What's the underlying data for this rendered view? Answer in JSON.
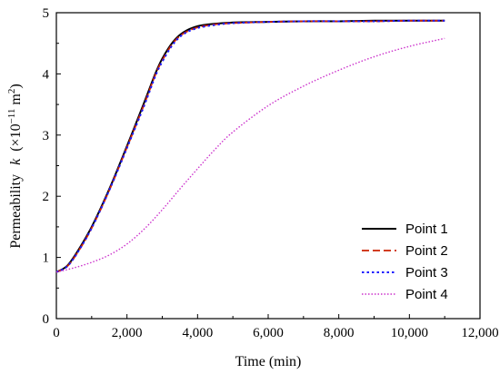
{
  "chart_data": {
    "type": "line",
    "xlabel": "Time (min)",
    "ylabel": {
      "prefix": "Permeability",
      "symbol": "k",
      "open": "(×10",
      "exp": "−11",
      "unit": " m",
      "unit_exp": "2",
      "close": ")"
    },
    "xlim": [
      0,
      12000
    ],
    "ylim": [
      0,
      5
    ],
    "xticks": [
      0,
      2000,
      4000,
      6000,
      8000,
      10000,
      12000
    ],
    "xtick_labels": [
      "0",
      "2,000",
      "4,000",
      "6,000",
      "8,000",
      "10,000",
      "12,000"
    ],
    "yticks": [
      0,
      1,
      2,
      3,
      4,
      5
    ],
    "ytick_labels": [
      "0",
      "1",
      "2",
      "3",
      "4",
      "5"
    ],
    "grid": false,
    "legend_position": "bottom-right",
    "series": [
      {
        "name": "Point 1",
        "color": "#000000",
        "dash": "solid",
        "x": [
          0,
          300,
          600,
          1000,
          1500,
          2000,
          2500,
          2800,
          3000,
          3300,
          3600,
          4000,
          4500,
          5000,
          6000,
          7000,
          8000,
          9000,
          10000,
          11000
        ],
        "y": [
          0.76,
          0.86,
          1.1,
          1.5,
          2.12,
          2.82,
          3.55,
          4.0,
          4.25,
          4.52,
          4.68,
          4.78,
          4.82,
          4.84,
          4.85,
          4.86,
          4.86,
          4.87,
          4.87,
          4.87
        ]
      },
      {
        "name": "Point 2",
        "color": "#cc2200",
        "dash": "dashed",
        "x": [
          0,
          300,
          600,
          1000,
          1500,
          2000,
          2500,
          2800,
          3000,
          3300,
          3600,
          4000,
          4500,
          5000,
          6000,
          7000,
          8000,
          9000,
          10000,
          11000
        ],
        "y": [
          0.76,
          0.85,
          1.08,
          1.48,
          2.1,
          2.8,
          3.52,
          3.98,
          4.22,
          4.5,
          4.66,
          4.76,
          4.81,
          4.83,
          4.85,
          4.86,
          4.86,
          4.86,
          4.87,
          4.87
        ]
      },
      {
        "name": "Point 3",
        "color": "#1a1aff",
        "dash": "dotted-dense",
        "x": [
          0,
          300,
          600,
          1000,
          1500,
          2000,
          2500,
          2800,
          3000,
          3300,
          3600,
          4000,
          4500,
          5000,
          6000,
          7000,
          8000,
          9000,
          10000,
          11000
        ],
        "y": [
          0.76,
          0.85,
          1.08,
          1.48,
          2.1,
          2.79,
          3.5,
          3.96,
          4.2,
          4.48,
          4.65,
          4.75,
          4.8,
          4.83,
          4.85,
          4.86,
          4.86,
          4.86,
          4.87,
          4.87
        ]
      },
      {
        "name": "Point 4",
        "color": "#cc33cc",
        "dash": "dotted",
        "x": [
          0,
          500,
          1000,
          1500,
          2000,
          2500,
          3000,
          3500,
          4000,
          4500,
          5000,
          6000,
          7000,
          8000,
          9000,
          10000,
          11000
        ],
        "y": [
          0.76,
          0.83,
          0.92,
          1.04,
          1.22,
          1.47,
          1.78,
          2.12,
          2.45,
          2.77,
          3.05,
          3.48,
          3.8,
          4.06,
          4.28,
          4.45,
          4.58
        ]
      }
    ]
  }
}
